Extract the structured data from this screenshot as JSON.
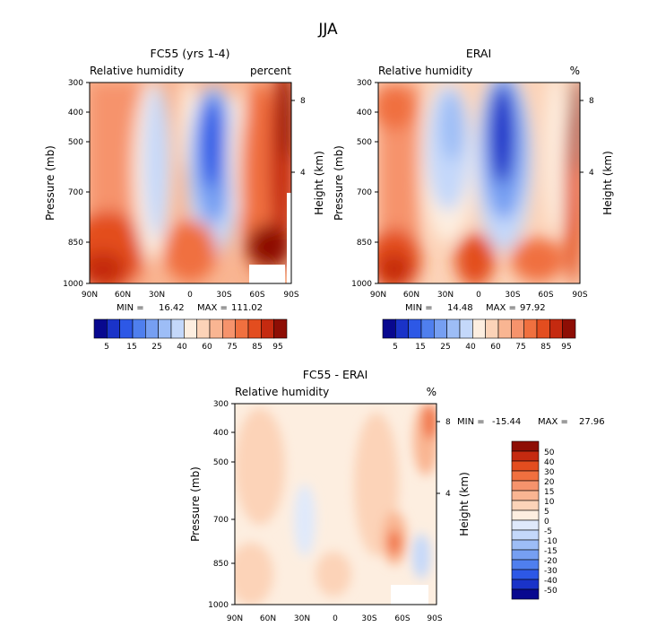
{
  "figure": {
    "season": "JJA"
  },
  "chart_data": [
    {
      "type": "heatmap",
      "id": "fc55",
      "title": "FC55 (yrs 1-4)",
      "subtitle_left": "Relative humidity",
      "subtitle_right": "percent",
      "ylabel": "Pressure (mb)",
      "ylabel_right": "Height (km)",
      "x_ticks": [
        "90N",
        "60N",
        "30N",
        "0",
        "30S",
        "60S",
        "90S"
      ],
      "y_ticks": [
        "300",
        "400",
        "500",
        "700",
        "850",
        "1000"
      ],
      "height_ticks": [
        "8",
        "4"
      ],
      "ylim": [
        1000,
        300
      ],
      "stats": {
        "min_label": "MIN =",
        "min": "16.42",
        "max_label": "MAX =",
        "max": "111.02"
      },
      "colorbar": {
        "orientation": "horizontal",
        "labels": [
          "5",
          "15",
          "25",
          "40",
          "60",
          "75",
          "85",
          "95"
        ]
      }
    },
    {
      "type": "heatmap",
      "id": "erai",
      "title": "ERAI",
      "subtitle_left": "Relative humidity",
      "subtitle_right": "%",
      "ylabel": "Pressure (mb)",
      "ylabel_right": "Height (km)",
      "x_ticks": [
        "90N",
        "60N",
        "30N",
        "0",
        "30S",
        "60S",
        "90S"
      ],
      "y_ticks": [
        "300",
        "400",
        "500",
        "700",
        "850",
        "1000"
      ],
      "height_ticks": [
        "8",
        "4"
      ],
      "ylim": [
        1000,
        300
      ],
      "stats": {
        "min_label": "MIN =",
        "min": "14.48",
        "max_label": "MAX =",
        "max": "97.92"
      },
      "colorbar": {
        "orientation": "horizontal",
        "labels": [
          "5",
          "15",
          "25",
          "40",
          "60",
          "75",
          "85",
          "95"
        ]
      }
    },
    {
      "type": "heatmap",
      "id": "diff",
      "title": "FC55 - ERAI",
      "subtitle_left": "Relative humidity",
      "subtitle_right": "%",
      "ylabel": "Pressure (mb)",
      "ylabel_right": "Height (km)",
      "x_ticks": [
        "90N",
        "60N",
        "30N",
        "0",
        "30S",
        "60S",
        "90S"
      ],
      "y_ticks": [
        "300",
        "400",
        "500",
        "700",
        "850",
        "1000"
      ],
      "height_ticks": [
        "8",
        "4"
      ],
      "ylim": [
        1000,
        300
      ],
      "stats": {
        "min_label": "MIN =",
        "min": "-15.44",
        "max_label": "MAX =",
        "max": "27.96"
      },
      "colorbar": {
        "orientation": "vertical",
        "labels": [
          "50",
          "40",
          "30",
          "20",
          "15",
          "10",
          "5",
          "0",
          "-5",
          "-10",
          "-15",
          "-20",
          "-30",
          "-40",
          "-50"
        ]
      }
    }
  ],
  "colors": {
    "rh_scale": [
      "#08088f",
      "#1a33c8",
      "#2d58e6",
      "#4f7fee",
      "#769ff2",
      "#9dbdf6",
      "#c4d8fa",
      "#fdeee0",
      "#fcd3b8",
      "#f9b592",
      "#f6936c",
      "#f0703f",
      "#e34d1f",
      "#c52a10",
      "#8e0e05"
    ],
    "diff_scale": [
      "#8e0e05",
      "#c52a10",
      "#e34d1f",
      "#f0703f",
      "#f6936c",
      "#f9b592",
      "#fcd3b8",
      "#fdeee0",
      "#dfe9fb",
      "#c4d8fa",
      "#9dbdf6",
      "#769ff2",
      "#4f7fee",
      "#2d58e6",
      "#1a33c8",
      "#08088f"
    ]
  }
}
